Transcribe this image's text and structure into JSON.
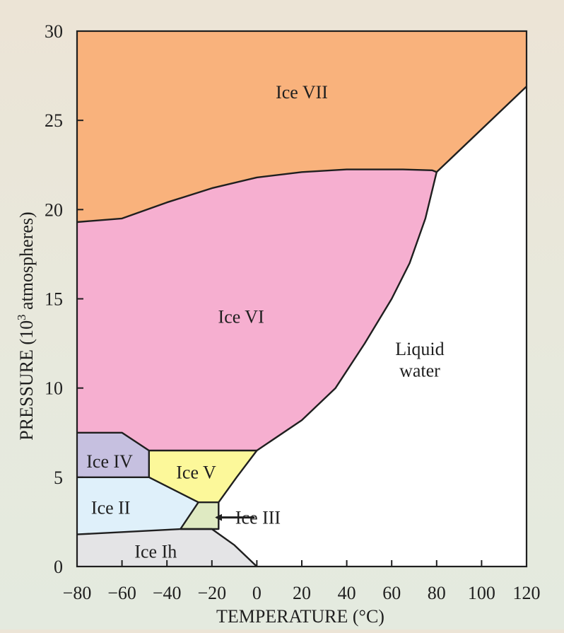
{
  "chart_data": {
    "type": "area",
    "chart_style": "phase-diagram",
    "xlabel": "TEMPERATURE (°C)",
    "ylabel_main": "PRESSURE (10",
    "ylabel_sup": "3",
    "ylabel_tail": " atmospheres)",
    "xlim": [
      -80,
      120
    ],
    "ylim": [
      0,
      30
    ],
    "x_ticks": [
      -80,
      -60,
      -40,
      -20,
      0,
      20,
      40,
      60,
      80,
      100,
      120
    ],
    "y_ticks": [
      0,
      5,
      10,
      15,
      20,
      25,
      30
    ],
    "x_tick_labels": [
      "−80",
      "−60",
      "−40",
      "−20",
      "0",
      "20",
      "40",
      "60",
      "80",
      "100",
      "120"
    ],
    "y_tick_labels": [
      "0",
      "5",
      "10",
      "15",
      "20",
      "25",
      "30"
    ],
    "grid": false,
    "colors": {
      "ice_vii": "#f9b27c",
      "ice_vi": "#f6afd0",
      "ice_iv": "#c6c0e0",
      "ice_v": "#fcf89a",
      "ice_ii": "#dff0fa",
      "ice_iii": "#dfeac2",
      "ice_ih": "#e4e4e6",
      "liquid": "#ffffff",
      "boundary": "#1f1f1f"
    },
    "regions": [
      {
        "name": "Ice VII",
        "color_key": "ice_vii",
        "points": [
          [
            -80,
            30
          ],
          [
            120,
            30
          ],
          [
            120,
            26.9
          ],
          [
            80,
            22.1
          ],
          [
            78,
            22.2
          ],
          [
            65,
            22.25
          ],
          [
            40,
            22.25
          ],
          [
            20,
            22.1
          ],
          [
            0,
            21.8
          ],
          [
            -20,
            21.2
          ],
          [
            -40,
            20.4
          ],
          [
            -60,
            19.5
          ],
          [
            -80,
            19.3
          ]
        ]
      },
      {
        "name": "Ice VI",
        "color_key": "ice_vi",
        "points": [
          [
            -80,
            19.3
          ],
          [
            -60,
            19.5
          ],
          [
            -40,
            20.4
          ],
          [
            -20,
            21.2
          ],
          [
            0,
            21.8
          ],
          [
            20,
            22.1
          ],
          [
            40,
            22.25
          ],
          [
            65,
            22.25
          ],
          [
            78,
            22.2
          ],
          [
            80,
            22.1
          ],
          [
            75,
            19.5
          ],
          [
            68,
            17
          ],
          [
            60,
            15
          ],
          [
            48,
            12.5
          ],
          [
            35,
            10
          ],
          [
            20,
            8.2
          ],
          [
            0,
            6.5
          ],
          [
            -50,
            6.5
          ],
          [
            -60,
            7.5
          ],
          [
            -80,
            7.5
          ]
        ]
      },
      {
        "name": "Ice IV",
        "color_key": "ice_iv",
        "points": [
          [
            -80,
            7.5
          ],
          [
            -60,
            7.5
          ],
          [
            -48,
            6.5
          ],
          [
            -48,
            5
          ],
          [
            -80,
            5
          ]
        ]
      },
      {
        "name": "Ice V",
        "color_key": "ice_v",
        "points": [
          [
            -48,
            6.5
          ],
          [
            0,
            6.5
          ],
          [
            -9,
            5
          ],
          [
            -17,
            3.6
          ],
          [
            -26,
            3.6
          ],
          [
            -48,
            5
          ]
        ]
      },
      {
        "name": "Ice II",
        "color_key": "ice_ii",
        "points": [
          [
            -80,
            5
          ],
          [
            -48,
            5
          ],
          [
            -26,
            3.6
          ],
          [
            -34,
            2.1
          ],
          [
            -80,
            1.8
          ]
        ]
      },
      {
        "name": "Ice III",
        "color_key": "ice_iii",
        "points": [
          [
            -26,
            3.6
          ],
          [
            -17,
            3.6
          ],
          [
            -17,
            2.1
          ],
          [
            -34,
            2.1
          ]
        ]
      },
      {
        "name": "Ice Ih",
        "color_key": "ice_ih",
        "points": [
          [
            -80,
            1.8
          ],
          [
            -34,
            2.1
          ],
          [
            -20,
            2.1
          ],
          [
            -10,
            1.2
          ],
          [
            0,
            0
          ],
          [
            -80,
            0
          ]
        ]
      }
    ],
    "boundaries": [
      [
        [
          -80,
          19.3
        ],
        [
          -60,
          19.5
        ],
        [
          -40,
          20.4
        ],
        [
          -20,
          21.2
        ],
        [
          0,
          21.8
        ],
        [
          20,
          22.1
        ],
        [
          40,
          22.25
        ],
        [
          65,
          22.25
        ],
        [
          78,
          22.2
        ],
        [
          80,
          22.1
        ],
        [
          120,
          26.9
        ]
      ],
      [
        [
          80,
          22.1
        ],
        [
          75,
          19.5
        ],
        [
          68,
          17
        ],
        [
          60,
          15
        ],
        [
          48,
          12.5
        ],
        [
          35,
          10
        ],
        [
          20,
          8.2
        ],
        [
          0,
          6.5
        ],
        [
          -9,
          5
        ],
        [
          -17,
          3.6
        ]
      ],
      [
        [
          -80,
          7.5
        ],
        [
          -60,
          7.5
        ],
        [
          -48,
          6.5
        ],
        [
          0,
          6.5
        ]
      ],
      [
        [
          -80,
          5
        ],
        [
          -48,
          5
        ]
      ],
      [
        [
          -48,
          6.5
        ],
        [
          -48,
          5
        ],
        [
          -26,
          3.6
        ],
        [
          -17,
          3.6
        ],
        [
          -17,
          2.1
        ],
        [
          -34,
          2.1
        ],
        [
          -26,
          3.6
        ]
      ],
      [
        [
          -80,
          1.8
        ],
        [
          -34,
          2.1
        ],
        [
          -20,
          2.1
        ],
        [
          -10,
          1.2
        ],
        [
          0,
          0
        ]
      ]
    ],
    "labels": [
      {
        "text": "Ice VII",
        "x": 20,
        "y": 26.6
      },
      {
        "text": "Ice VI",
        "x": -7,
        "y": 14
      },
      {
        "text": "Ice IV",
        "x": -65.5,
        "y": 5.9
      },
      {
        "text": "Ice V",
        "x": -27,
        "y": 5.3
      },
      {
        "text": "Ice II",
        "x": -65,
        "y": 3.3
      },
      {
        "text": "Ice Ih",
        "x": -45,
        "y": 0.85
      },
      {
        "text": "Liquid",
        "x": 72.5,
        "y": 12.2
      },
      {
        "text": "water",
        "x": 72.5,
        "y": 11.0
      },
      {
        "text": "Ice III",
        "x": 0.5,
        "y": 2.75
      }
    ],
    "arrow": {
      "from": [
        -1,
        2.75
      ],
      "to": [
        -18,
        2.75
      ]
    }
  }
}
